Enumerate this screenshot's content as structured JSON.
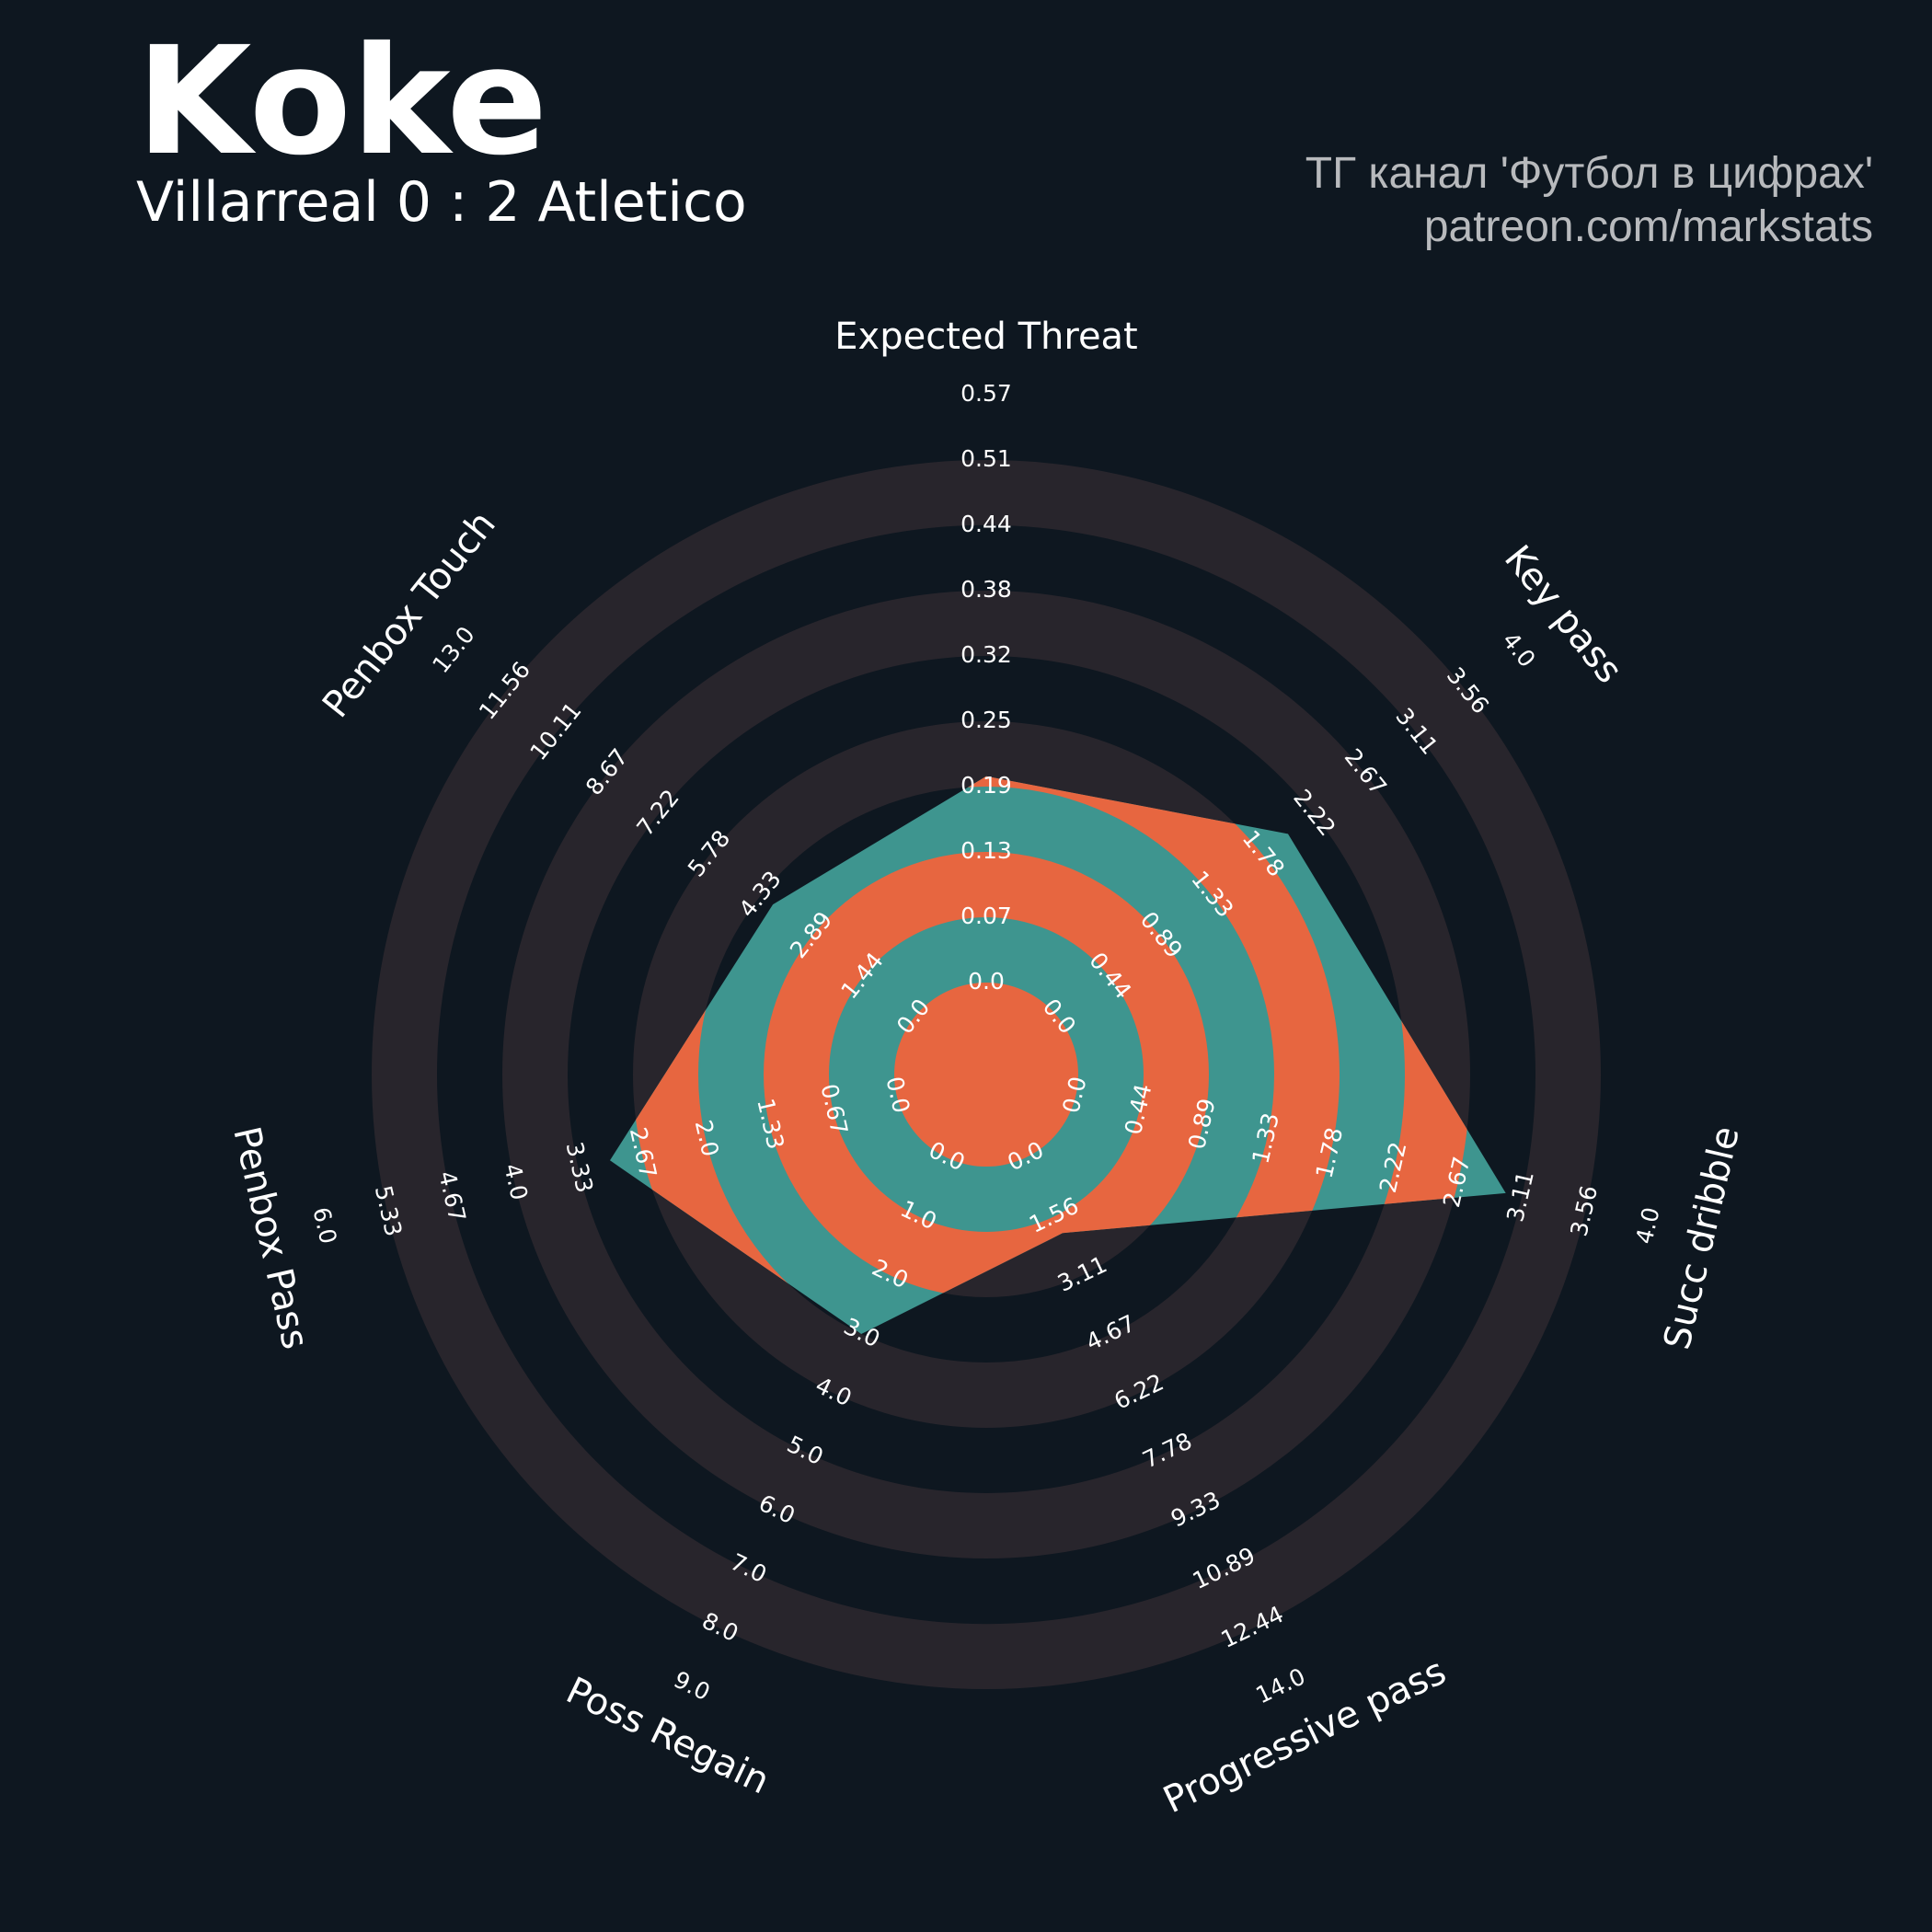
{
  "header": {
    "title": "Koke",
    "subtitle": "Villarreal 0 : 2 Atletico",
    "credit_line1": "ТГ канал 'Футбол в цифрах'",
    "credit_line2": "patreon.com/markstats"
  },
  "colors": {
    "background": "#0e1720",
    "ring_band": "#28252c",
    "fill_primary": "#3e958f",
    "fill_secondary": "#e76640",
    "text": "#ffffff",
    "credit_text": "#b8babd"
  },
  "chart_data": {
    "type": "radar",
    "grid": true,
    "axes": [
      {
        "name": "Expected Threat",
        "ticks": [
          "0.0",
          "0.07",
          "0.13",
          "0.19",
          "0.25",
          "0.32",
          "0.38",
          "0.44",
          "0.51",
          "0.57"
        ],
        "value": 0.2
      },
      {
        "name": "Key pass",
        "ticks": [
          "0.0",
          "0.44",
          "0.89",
          "1.33",
          "1.78",
          "2.22",
          "2.67",
          "3.11",
          "3.56",
          "4.0"
        ],
        "value": 2.0
      },
      {
        "name": "Succ dribble",
        "ticks": [
          "0.0",
          "0.44",
          "0.89",
          "1.33",
          "1.78",
          "2.22",
          "2.67",
          "3.11",
          "3.56",
          "4.0"
        ],
        "value": 3.0
      },
      {
        "name": "Progressive pass",
        "ticks": [
          "0.0",
          "1.56",
          "3.11",
          "4.67",
          "6.22",
          "7.78",
          "9.33",
          "10.89",
          "12.44",
          "14.0"
        ],
        "value": 2.0
      },
      {
        "name": "Poss Regain",
        "ticks": [
          "0.0",
          "1.0",
          "2.0",
          "3.0",
          "4.0",
          "5.0",
          "6.0",
          "7.0",
          "8.0",
          "9.0"
        ],
        "value": 3.0
      },
      {
        "name": "Penbox Pass",
        "ticks": [
          "0.0",
          "0.67",
          "1.33",
          "2.0",
          "2.67",
          "3.33",
          "4.0",
          "4.67",
          "5.33",
          "6.0"
        ],
        "value": 3.0
      },
      {
        "name": "Penbox Touch",
        "ticks": [
          "0.0",
          "1.44",
          "2.89",
          "4.33",
          "5.78",
          "7.22",
          "8.67",
          "10.11",
          "11.56",
          "13.0"
        ],
        "value": 4.0
      }
    ]
  }
}
